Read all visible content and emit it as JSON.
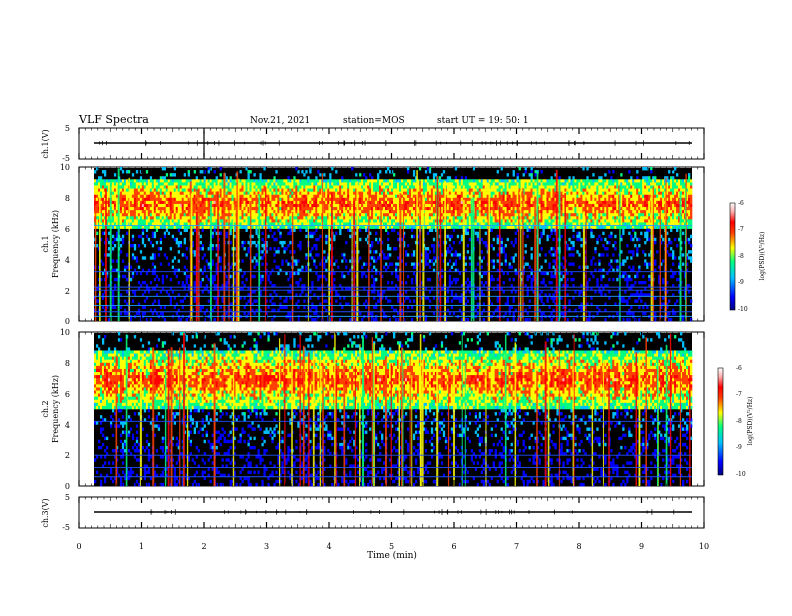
{
  "header": {
    "title": "VLF Spectra",
    "date": "Nov.21, 2021",
    "station": "station=MOS",
    "start": "start  UT =   19: 50: 1"
  },
  "chart_data": [
    {
      "type": "line",
      "name": "ch1-voltage",
      "ylabel": "ch.1(V)",
      "ylim": [
        -5,
        5
      ],
      "yticks": [
        "5",
        "-5"
      ],
      "values": [
        0,
        0
      ]
    },
    {
      "type": "heatmap",
      "name": "ch1-spectrogram",
      "ylabel_1": "ch.1",
      "ylabel_2": "Frequency (kHz)",
      "ylim": [
        0,
        10
      ],
      "yticks": [
        "0",
        "2",
        "4",
        "6",
        "8",
        "10"
      ],
      "xlim": [
        0,
        10
      ],
      "colorbar": {
        "label": "log(PSD)(V²/Hz)",
        "range": [
          -10,
          -6
        ],
        "ticks": [
          "-6",
          "-7",
          "-8",
          "-9",
          "-10"
        ]
      },
      "emission_band_khz": [
        6,
        9.2
      ],
      "hum_lines_khz": [
        0.3,
        0.6,
        1.0,
        1.6,
        2.0,
        2.2,
        3.2,
        6.2
      ]
    },
    {
      "type": "heatmap",
      "name": "ch2-spectrogram",
      "ylabel_1": "ch.2",
      "ylabel_2": "Frequency (kHz)",
      "ylim": [
        0,
        10
      ],
      "yticks": [
        "0",
        "2",
        "4",
        "6",
        "8",
        "10"
      ],
      "xlim": [
        0,
        10
      ],
      "colorbar": {
        "label": "log(PSD)(V²/Hz)",
        "range": [
          -10,
          -6
        ],
        "ticks": [
          "-6",
          "-7",
          "-8",
          "-9",
          "-10"
        ]
      },
      "emission_band_khz": [
        5,
        8.8
      ],
      "hum_lines_khz": [
        0.6,
        1.2,
        2.0,
        4.2
      ]
    },
    {
      "type": "line",
      "name": "ch3-voltage",
      "ylabel": "ch.3(V)",
      "ylim": [
        -5,
        5
      ],
      "yticks": [
        "5",
        "-5"
      ],
      "values": [
        0,
        0
      ]
    }
  ],
  "xaxis": {
    "label": "Time (min)",
    "range": [
      0,
      10
    ],
    "ticks": [
      "0",
      "1",
      "2",
      "3",
      "4",
      "5",
      "6",
      "7",
      "8",
      "9",
      "10"
    ]
  },
  "colormap": [
    "#00007f",
    "#0000ff",
    "#00bfff",
    "#00ff80",
    "#ffff00",
    "#ff4000",
    "#ff0000",
    "#ffb0b0",
    "#ffffff"
  ]
}
